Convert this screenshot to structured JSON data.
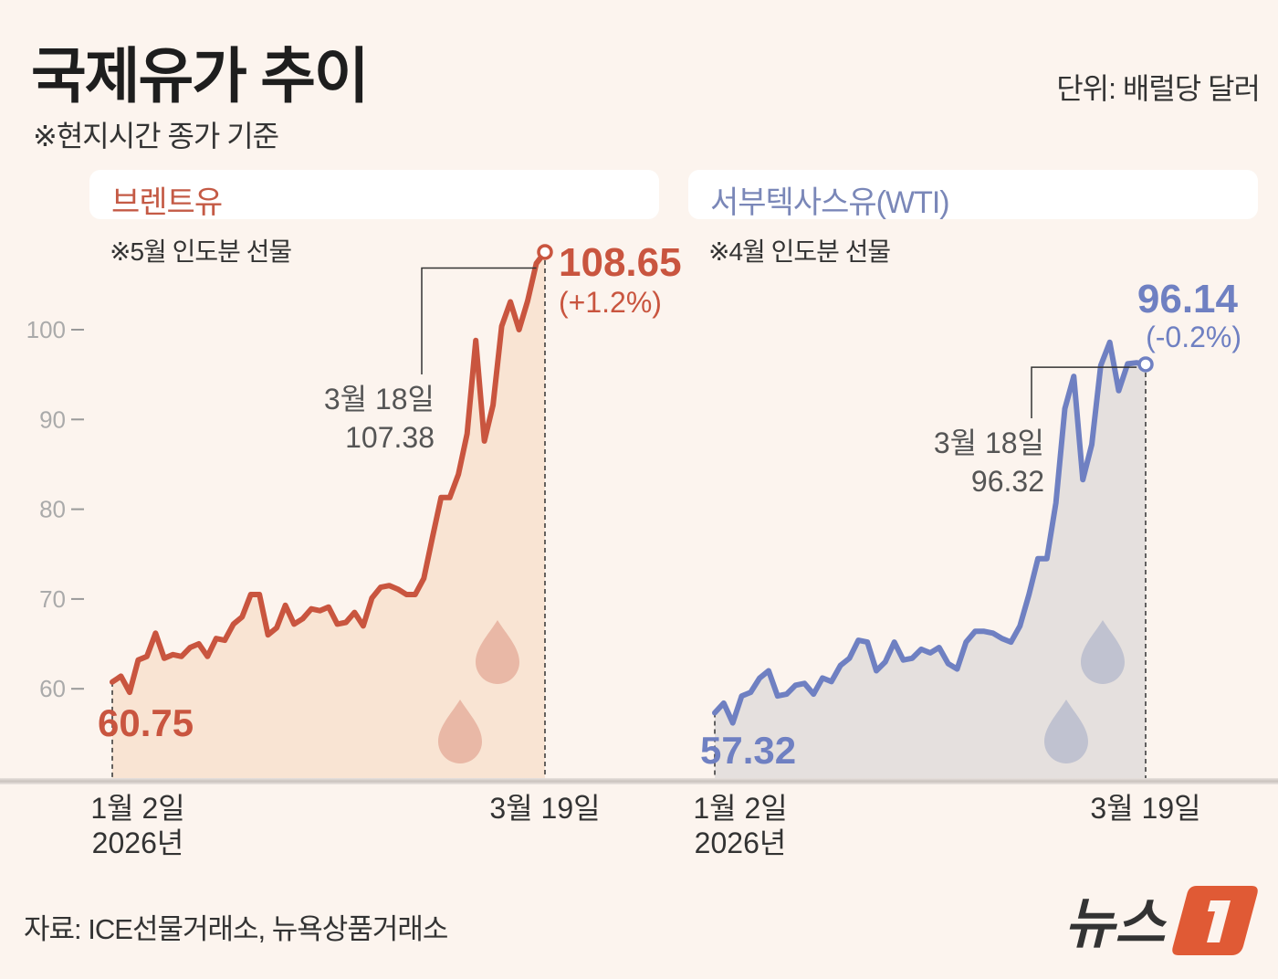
{
  "header": {
    "title": "국제유가 추이",
    "subtitle": "※현지시간 종가 기준",
    "unit": "단위: 배럴당 달러"
  },
  "footer": {
    "source": "자료: ICE선물거래소, 뉴욕상품거래소",
    "logo_text": "뉴스1"
  },
  "colors": {
    "background": "#fcf4ee",
    "brent": "#c9553f",
    "brent_fill": "#f9e4d3",
    "brent_drop": "#e9b8a6",
    "wti": "#6f80c2",
    "wti_fill": "#e5e0de",
    "wti_drop": "#c0c2d0",
    "logo_accent": "#e05a35"
  },
  "chart_data": [
    {
      "type": "area",
      "title": "브렌트유",
      "note": "※5월 인도분 선물",
      "yticks": [
        60,
        70,
        80,
        90,
        100
      ],
      "ylim": [
        50,
        110
      ],
      "x_start_label": [
        "1월 2일",
        "2026년"
      ],
      "x_end_label": "3월 19일",
      "start_value_label": "60.75",
      "end_value_label": "108.65",
      "end_change_label": "(+1.2%)",
      "callout": {
        "date": "3월 18일",
        "value": "107.38"
      },
      "values": [
        60.75,
        61.4,
        59.6,
        63.2,
        63.6,
        66.2,
        63.4,
        63.8,
        63.6,
        64.6,
        65.0,
        63.6,
        65.6,
        65.4,
        67.2,
        68.0,
        70.5,
        70.5,
        66.0,
        66.8,
        69.3,
        67.2,
        67.8,
        68.9,
        68.7,
        69.1,
        67.2,
        67.4,
        68.5,
        67.0,
        70.1,
        71.3,
        71.5,
        71.1,
        70.5,
        70.5,
        72.3,
        76.9,
        81.3,
        81.3,
        83.9,
        88.4,
        98.8,
        87.6,
        91.6,
        100.4,
        103.1,
        100.0,
        103.2,
        107.38,
        108.65
      ]
    },
    {
      "type": "area",
      "title": "서부텍사스유(WTI)",
      "note": "※4월 인도분 선물",
      "ylim": [
        50,
        110
      ],
      "x_start_label": [
        "1월 2일",
        "2026년"
      ],
      "x_end_label": "3월 19일",
      "start_value_label": "57.32",
      "end_value_label": "96.14",
      "end_change_label": "(-0.2%)",
      "callout": {
        "date": "3월 18일",
        "value": "96.32"
      },
      "values": [
        57.32,
        58.4,
        56.2,
        59.2,
        59.6,
        61.2,
        62.0,
        59.2,
        59.4,
        60.4,
        60.6,
        59.4,
        61.2,
        60.8,
        62.6,
        63.4,
        65.4,
        65.2,
        62.0,
        63.0,
        65.2,
        63.2,
        63.4,
        64.4,
        64.0,
        64.6,
        62.8,
        62.2,
        65.2,
        66.4,
        66.4,
        66.2,
        65.6,
        65.2,
        67.0,
        70.5,
        74.5,
        74.5,
        80.7,
        91.2,
        94.8,
        83.3,
        87.2,
        96.0,
        98.6,
        93.2,
        96.2,
        96.32,
        96.14
      ]
    }
  ]
}
